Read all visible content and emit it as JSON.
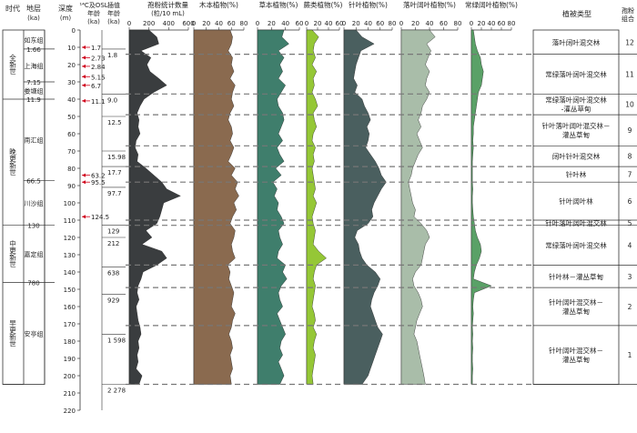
{
  "chart_data": {
    "type": "area",
    "header": {
      "era": "时代",
      "stratum": "地层",
      "stratum_unit": "(ka)",
      "depth": "深度",
      "depth_unit": "(m)",
      "dating": "¹⁴C及OSL",
      "dating_sub": "年龄",
      "dating_unit": "(ka)",
      "interp": "插值",
      "interp_sub": "年龄",
      "interp_unit": "(ka)",
      "pollen_count": "孢粉统计数量",
      "pollen_count_unit": "(粒/10 mL)",
      "veg_type": "植被类型",
      "assemblage": "孢粉",
      "assemblage2": "组合"
    },
    "eras": [
      {
        "name": "全新世",
        "top": 0,
        "bottom": 40
      },
      {
        "name": "晚更新世",
        "top": 40,
        "bottom": 113
      },
      {
        "name": "中更新世",
        "top": 113,
        "bottom": 146
      },
      {
        "name": "早更新世",
        "top": 146,
        "bottom": 205
      }
    ],
    "formations": [
      {
        "name": "如东组",
        "top": 0,
        "bottom": 11
      },
      {
        "name": "上海组",
        "top": 11,
        "bottom": 30
      },
      {
        "name": "娄塘组",
        "top": 30,
        "bottom": 40
      },
      {
        "name": "南汇组",
        "top": 40,
        "bottom": 87
      },
      {
        "name": "川沙组",
        "top": 87,
        "bottom": 113
      },
      {
        "name": "嘉定组",
        "top": 113,
        "bottom": 146
      },
      {
        "name": "安亭组",
        "top": 146,
        "bottom": 205
      }
    ],
    "stratum_ages": [
      {
        "label": "1.66",
        "depth": 11
      },
      {
        "label": "7.15",
        "depth": 30
      },
      {
        "label": "11.9",
        "depth": 40
      },
      {
        "label": "66.5",
        "depth": 87
      },
      {
        "label": "130",
        "depth": 113
      },
      {
        "label": "780",
        "depth": 146
      }
    ],
    "depth_ticks": [
      0,
      10,
      20,
      30,
      40,
      50,
      60,
      70,
      80,
      90,
      100,
      110,
      120,
      130,
      140,
      150,
      160,
      170,
      180,
      190,
      200,
      210,
      220
    ],
    "dating_ages": [
      {
        "label": "1.7",
        "depth": 10
      },
      {
        "label": "2.73",
        "depth": 16
      },
      {
        "label": "2.84",
        "depth": 21
      },
      {
        "label": "5.15",
        "depth": 27
      },
      {
        "label": "6.7",
        "depth": 32
      },
      {
        "label": "11.1",
        "depth": 41
      },
      {
        "label": "63.2",
        "depth": 84
      },
      {
        "label": "95.5",
        "depth": 88
      },
      {
        "label": "124.5",
        "depth": 108
      }
    ],
    "interp_ages": [
      {
        "label": "1.8",
        "depth": 11
      },
      {
        "label": "9.0",
        "depth": 37
      },
      {
        "label": "12.5",
        "depth": 50
      },
      {
        "label": "15.98",
        "depth": 70
      },
      {
        "label": "17.7",
        "depth": 79
      },
      {
        "label": "97.7",
        "depth": 91
      },
      {
        "label": "129",
        "depth": 113
      },
      {
        "label": "212",
        "depth": 120
      },
      {
        "label": "638",
        "depth": 137
      },
      {
        "label": "929",
        "depth": 153
      },
      {
        "label": "1 598",
        "depth": 176
      },
      {
        "label": "2 278",
        "depth": 205
      }
    ],
    "zone_boundaries": [
      14,
      37,
      49,
      67,
      79,
      88,
      110,
      113,
      136,
      149,
      171,
      205
    ],
    "zones": [
      {
        "id": "12",
        "veg": [
          "落叶阔叶混交林"
        ],
        "top": 0,
        "bottom": 14
      },
      {
        "id": "11",
        "veg": [
          "常绿落叶阔叶混交林"
        ],
        "top": 14,
        "bottom": 37
      },
      {
        "id": "10",
        "veg": [
          "常绿落叶阔叶混交林",
          "-灌丛草甸"
        ],
        "top": 37,
        "bottom": 49
      },
      {
        "id": "9",
        "veg": [
          "针叶落叶阔叶混交林－",
          "灌丛草甸"
        ],
        "top": 49,
        "bottom": 67
      },
      {
        "id": "8",
        "veg": [
          "阔叶针叶混交林"
        ],
        "top": 67,
        "bottom": 79
      },
      {
        "id": "7",
        "veg": [
          "针叶林"
        ],
        "top": 79,
        "bottom": 88
      },
      {
        "id": "6",
        "veg": [
          "针叶阔叶林"
        ],
        "top": 88,
        "bottom": 110
      },
      {
        "id": "5",
        "veg": [
          "针叶落叶阔叶混交林"
        ],
        "top": 110,
        "bottom": 113
      },
      {
        "id": "4",
        "veg": [
          "常绿落叶阔叶混交林"
        ],
        "top": 113,
        "bottom": 136
      },
      {
        "id": "3",
        "veg": [
          "针叶林－灌丛草甸"
        ],
        "top": 136,
        "bottom": 149
      },
      {
        "id": "2",
        "veg": [
          "针叶阔叶混交林－",
          "灌丛草甸"
        ],
        "top": 149,
        "bottom": 171
      },
      {
        "id": "1",
        "veg": [
          "针叶阔叶混交林－",
          "灌丛草甸"
        ],
        "top": 171,
        "bottom": 205
      }
    ],
    "depth_range": [
      0,
      220
    ],
    "panels": [
      {
        "name": "孢粉统计数量",
        "color": "#3a3d3f",
        "xlim": [
          0,
          600
        ],
        "ticks": [
          0,
          200,
          400,
          600
        ],
        "depths": [
          0,
          4,
          8,
          12,
          16,
          20,
          24,
          28,
          32,
          36,
          40,
          44,
          48,
          52,
          56,
          60,
          64,
          68,
          72,
          76,
          80,
          84,
          88,
          92,
          96,
          100,
          104,
          108,
          112,
          116,
          120,
          124,
          128,
          132,
          136,
          140,
          144,
          148,
          152,
          156,
          160,
          164,
          168,
          172,
          176,
          180,
          184,
          188,
          192,
          196,
          200,
          205
        ],
        "values": [
          200,
          280,
          300,
          120,
          220,
          180,
          210,
          300,
          380,
          250,
          150,
          110,
          80,
          100,
          90,
          110,
          70,
          60,
          90,
          80,
          170,
          250,
          330,
          380,
          520,
          350,
          330,
          310,
          280,
          170,
          230,
          130,
          330,
          380,
          280,
          140,
          120,
          90,
          80,
          100,
          70,
          80,
          90,
          110,
          120,
          90,
          100,
          80,
          90,
          70,
          130,
          100
        ]
      },
      {
        "name": "木本植物(%)",
        "color": "#8a6a4f",
        "xlim": [
          0,
          80
        ],
        "ticks": [
          0,
          20,
          40,
          60,
          80
        ],
        "depths": [
          0,
          4,
          8,
          12,
          16,
          20,
          24,
          28,
          32,
          36,
          40,
          44,
          48,
          52,
          56,
          60,
          64,
          68,
          72,
          76,
          80,
          84,
          88,
          92,
          96,
          100,
          104,
          108,
          112,
          116,
          120,
          124,
          128,
          132,
          136,
          140,
          144,
          148,
          152,
          156,
          160,
          164,
          168,
          172,
          176,
          180,
          184,
          188,
          192,
          196,
          200,
          205
        ],
        "values": [
          58,
          62,
          60,
          55,
          62,
          60,
          64,
          58,
          66,
          62,
          60,
          64,
          58,
          55,
          60,
          62,
          58,
          64,
          60,
          55,
          66,
          60,
          70,
          66,
          72,
          64,
          68,
          62,
          58,
          66,
          64,
          60,
          62,
          66,
          54,
          58,
          56,
          60,
          64,
          62,
          60,
          66,
          62,
          60,
          56,
          60,
          62,
          58,
          60,
          62,
          58,
          60
        ]
      },
      {
        "name": "草本植物(%)",
        "color": "#3f7e6c",
        "xlim": [
          0,
          60
        ],
        "ticks": [
          0,
          20,
          40,
          60
        ],
        "depths": [
          0,
          4,
          8,
          12,
          16,
          20,
          24,
          28,
          32,
          36,
          40,
          44,
          48,
          52,
          56,
          60,
          64,
          68,
          72,
          76,
          80,
          84,
          88,
          92,
          96,
          100,
          104,
          108,
          112,
          116,
          120,
          124,
          128,
          132,
          136,
          140,
          144,
          148,
          152,
          156,
          160,
          164,
          168,
          172,
          176,
          180,
          184,
          188,
          192,
          196,
          200,
          205
        ],
        "values": [
          38,
          35,
          45,
          30,
          38,
          32,
          36,
          30,
          40,
          34,
          28,
          30,
          36,
          38,
          34,
          30,
          36,
          28,
          32,
          38,
          26,
          34,
          22,
          28,
          24,
          30,
          28,
          34,
          38,
          30,
          32,
          36,
          30,
          28,
          40,
          36,
          42,
          34,
          30,
          32,
          36,
          28,
          32,
          36,
          40,
          34,
          32,
          36,
          30,
          34,
          38,
          32
        ]
      },
      {
        "name": "蕨类植物(%)",
        "color": "#95c736",
        "xlim": [
          0,
          60
        ],
        "ticks": [
          0,
          20,
          40,
          60
        ],
        "depths": [
          0,
          4,
          8,
          12,
          16,
          20,
          24,
          28,
          32,
          36,
          40,
          44,
          48,
          52,
          56,
          60,
          64,
          68,
          72,
          76,
          80,
          84,
          88,
          92,
          96,
          100,
          104,
          108,
          112,
          116,
          120,
          124,
          128,
          132,
          136,
          140,
          144,
          148,
          152,
          156,
          160,
          164,
          168,
          172,
          176,
          180,
          184,
          188,
          192,
          196,
          200,
          205
        ],
        "values": [
          10,
          22,
          14,
          12,
          16,
          10,
          18,
          12,
          14,
          10,
          16,
          20,
          12,
          14,
          18,
          12,
          10,
          16,
          12,
          14,
          10,
          12,
          14,
          16,
          12,
          18,
          14,
          10,
          12,
          16,
          14,
          12,
          22,
          36,
          18,
          14,
          12,
          16,
          14,
          12,
          10,
          14,
          16,
          12,
          18,
          14,
          12,
          16,
          14,
          12,
          10,
          12
        ]
      },
      {
        "name": "针叶植物(%)",
        "color": "#4a5f5f",
        "xlim": [
          0,
          80
        ],
        "ticks": [
          0,
          20,
          40,
          60,
          80
        ],
        "depths": [
          0,
          4,
          8,
          12,
          16,
          20,
          24,
          28,
          32,
          36,
          40,
          44,
          48,
          52,
          56,
          60,
          64,
          68,
          72,
          76,
          80,
          84,
          88,
          92,
          96,
          100,
          104,
          108,
          112,
          116,
          120,
          124,
          128,
          132,
          136,
          140,
          144,
          148,
          152,
          156,
          160,
          164,
          168,
          172,
          176,
          180,
          184,
          188,
          192,
          196,
          200,
          205
        ],
        "values": [
          20,
          30,
          50,
          28,
          24,
          20,
          18,
          16,
          22,
          18,
          30,
          34,
          40,
          44,
          38,
          42,
          40,
          36,
          44,
          52,
          58,
          62,
          70,
          62,
          56,
          50,
          46,
          48,
          40,
          22,
          18,
          24,
          26,
          30,
          38,
          52,
          60,
          56,
          50,
          46,
          44,
          48,
          52,
          56,
          64,
          60,
          56,
          52,
          48,
          44,
          40,
          30
        ]
      },
      {
        "name": "落叶阔叶植物(%)",
        "color": "#a9bda9",
        "xlim": [
          0,
          80
        ],
        "ticks": [
          0,
          20,
          40,
          60,
          80
        ],
        "depths": [
          0,
          4,
          8,
          12,
          16,
          20,
          24,
          28,
          32,
          36,
          40,
          44,
          48,
          52,
          56,
          60,
          64,
          68,
          72,
          76,
          80,
          84,
          88,
          92,
          96,
          100,
          104,
          108,
          112,
          116,
          120,
          124,
          128,
          132,
          136,
          140,
          144,
          148,
          152,
          156,
          160,
          164,
          168,
          172,
          176,
          180,
          184,
          188,
          192,
          196,
          200,
          205
        ],
        "values": [
          40,
          48,
          36,
          42,
          38,
          34,
          40,
          36,
          34,
          40,
          36,
          30,
          28,
          24,
          28,
          22,
          26,
          30,
          24,
          20,
          16,
          14,
          10,
          12,
          14,
          16,
          20,
          18,
          28,
          36,
          40,
          34,
          32,
          30,
          28,
          20,
          16,
          18,
          24,
          28,
          30,
          26,
          22,
          20,
          18,
          22,
          24,
          26,
          28,
          30,
          32,
          34
        ]
      },
      {
        "name": "常绿阔叶植物(%)",
        "color": "#5aa167",
        "xlim": [
          0,
          80
        ],
        "ticks": [
          0,
          20,
          40,
          60,
          80
        ],
        "depths": [
          0,
          4,
          8,
          12,
          16,
          20,
          24,
          28,
          32,
          36,
          40,
          44,
          48,
          52,
          56,
          60,
          64,
          68,
          72,
          76,
          80,
          84,
          88,
          92,
          96,
          100,
          104,
          108,
          112,
          116,
          120,
          124,
          128,
          132,
          136,
          140,
          144,
          148,
          152,
          156,
          160,
          164,
          168,
          172,
          176,
          180,
          184,
          188,
          192,
          196,
          200,
          205
        ],
        "values": [
          4,
          6,
          8,
          12,
          18,
          20,
          24,
          22,
          20,
          14,
          12,
          10,
          8,
          6,
          4,
          4,
          3,
          4,
          3,
          2,
          2,
          2,
          2,
          3,
          2,
          2,
          3,
          4,
          6,
          8,
          12,
          18,
          20,
          16,
          10,
          6,
          4,
          40,
          6,
          4,
          3,
          4,
          3,
          2,
          3,
          2,
          3,
          2,
          2,
          3,
          2,
          2
        ]
      }
    ]
  }
}
